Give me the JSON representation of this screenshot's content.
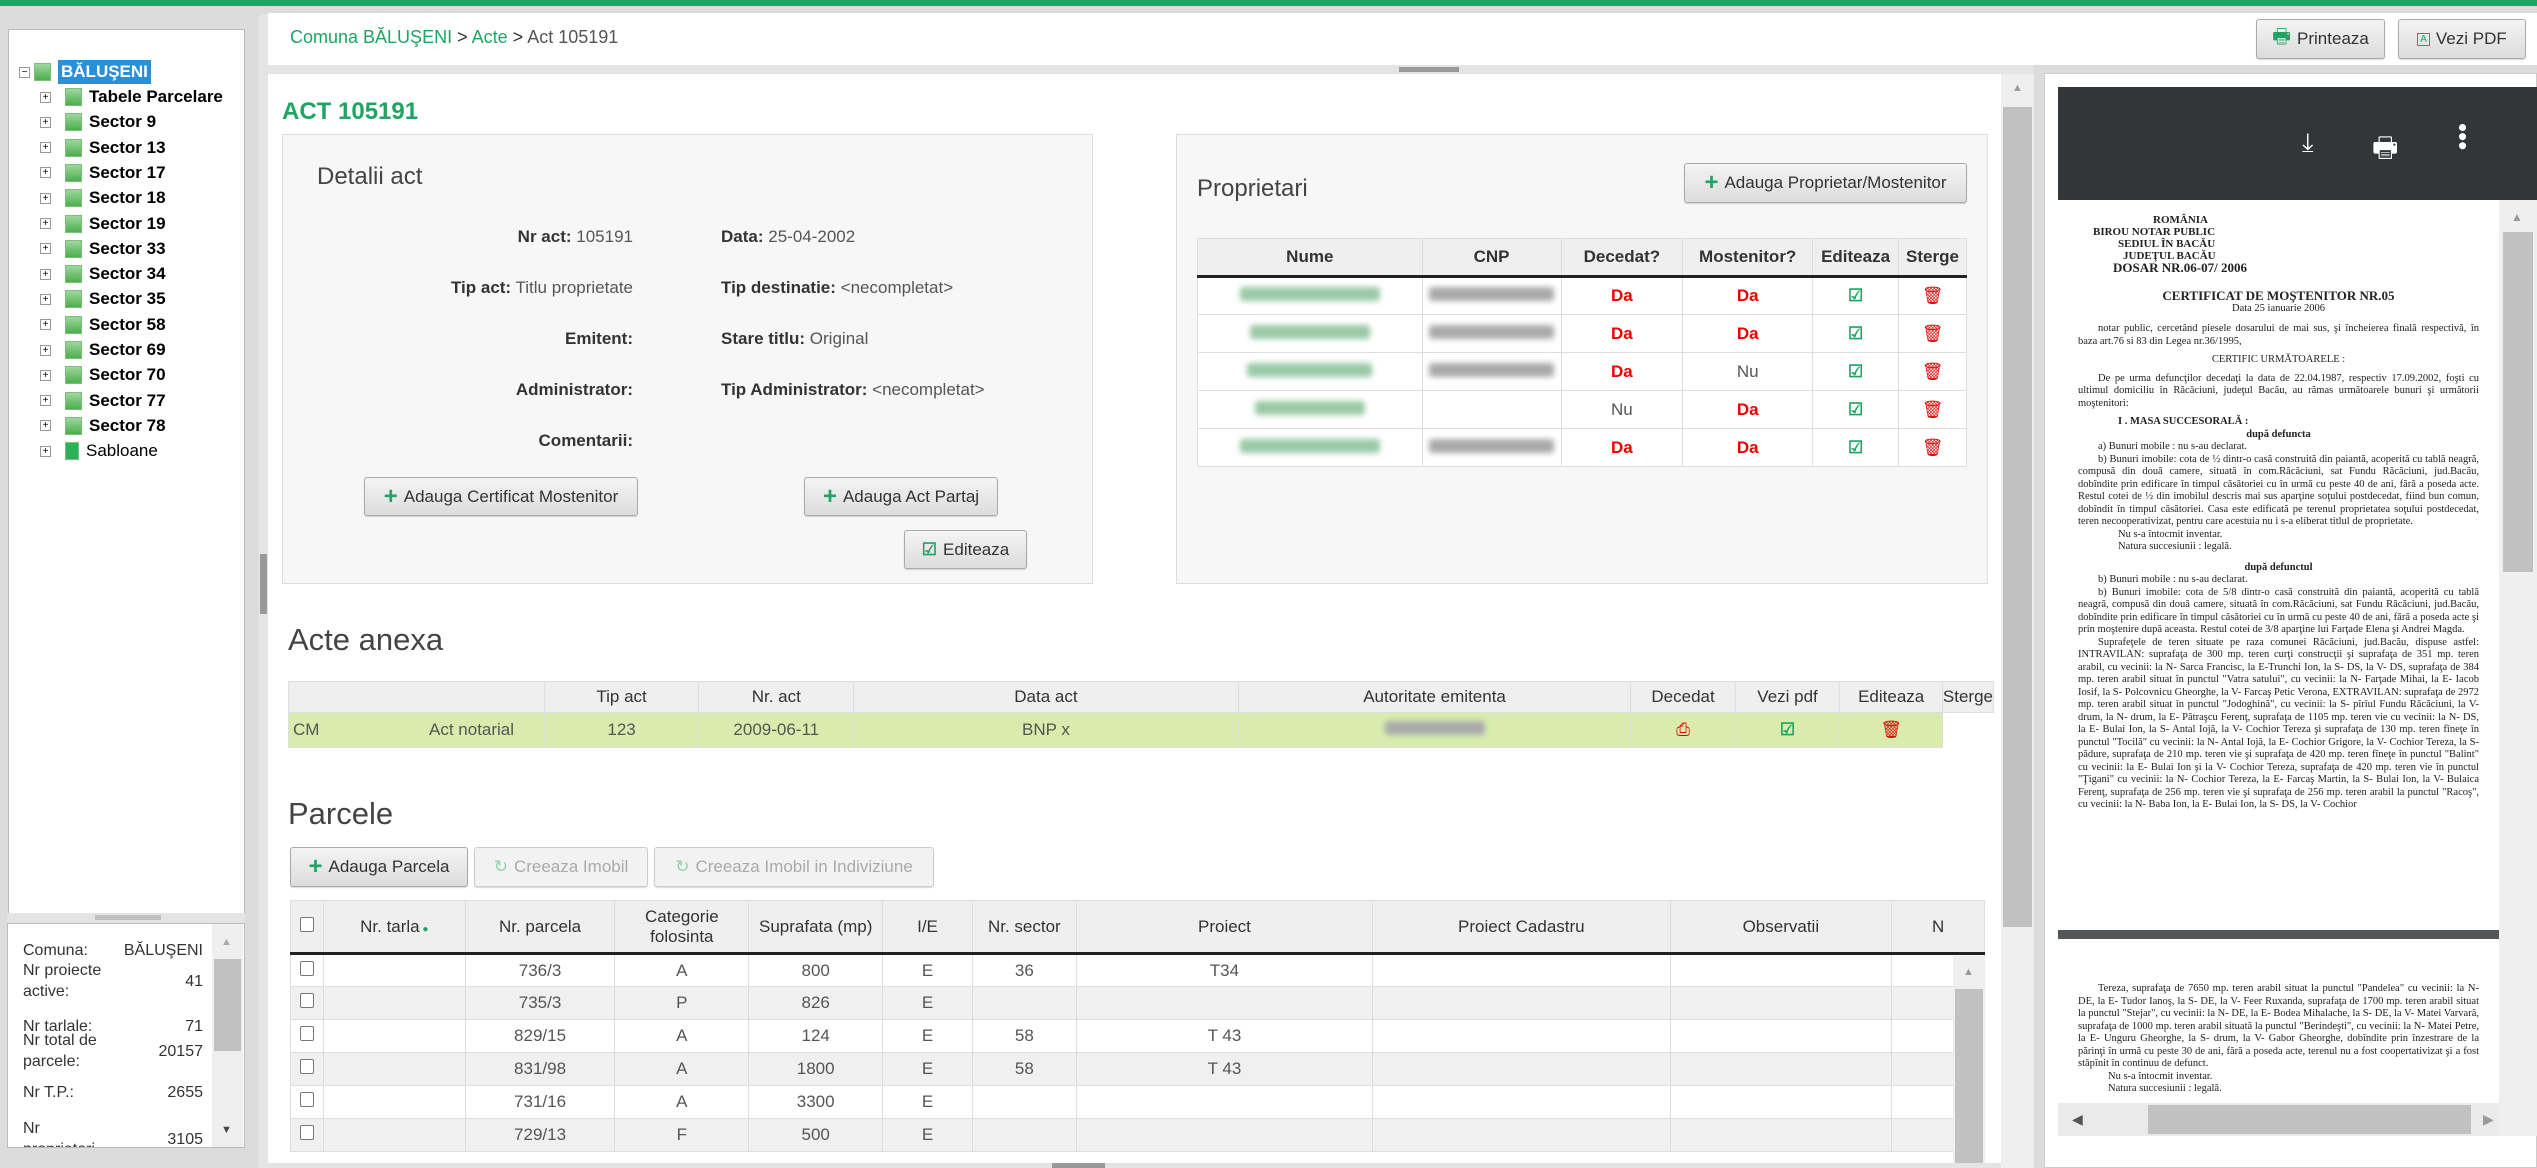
{
  "colors": {
    "brand": "#1fa463",
    "danger": "#e00000",
    "tree_selected": "#2a8fd6",
    "anexa_row": "#d9ecae"
  },
  "breadcrumb": {
    "root": "Comuna BĂLUŞENI",
    "sep": ">",
    "acte": "Acte",
    "current": "Act 105191"
  },
  "header_buttons": {
    "print": "Printeaza",
    "pdf": "Vezi PDF"
  },
  "tree": {
    "root": "BĂLUŞENI",
    "items": [
      "Tabele Parcelare",
      "Sector 9",
      "Sector 13",
      "Sector 17",
      "Sector 18",
      "Sector 19",
      "Sector 33",
      "Sector 34",
      "Sector 35",
      "Sector 58",
      "Sector 69",
      "Sector 70",
      "Sector 77",
      "Sector 78",
      "Sabloane"
    ]
  },
  "stats": [
    {
      "label": "Comuna:",
      "value": "BĂLUŞENI"
    },
    {
      "label": "Nr proiecte active:",
      "value": "41"
    },
    {
      "label": "Nr tarlale:",
      "value": "71"
    },
    {
      "label": "Nr total de parcele:",
      "value": "20157"
    },
    {
      "label": "Nr T.P.:",
      "value": "2655"
    },
    {
      "label": "Nr proprietari",
      "value": "3105"
    }
  ],
  "act": {
    "title": "ACT 105191",
    "details_title": "Detalii act",
    "fields": [
      {
        "label": "Nr act:",
        "value": "105191"
      },
      {
        "label": "Data:",
        "value": "25-04-2002"
      },
      {
        "label": "Tip act:",
        "value": "Titlu proprietate"
      },
      {
        "label": "Tip destinatie:",
        "value": "<necompletat>"
      },
      {
        "label": "Emitent:",
        "value": ""
      },
      {
        "label": "Stare titlu:",
        "value": "Original"
      },
      {
        "label": "Administrator:",
        "value": ""
      },
      {
        "label": "Tip Administrator:",
        "value": "<necompletat>"
      },
      {
        "label": "Comentarii:",
        "value": ""
      }
    ],
    "btn_cert": "Adauga Certificat Mostenitor",
    "btn_partaj": "Adauga Act Partaj",
    "btn_edit": "Editeaza"
  },
  "proprietari": {
    "title": "Proprietari",
    "add_button": "Adauga Proprietar/Mostenitor",
    "columns": [
      "Nume",
      "CNP",
      "Decedat?",
      "Mostenitor?",
      "Editeaza",
      "Sterge"
    ],
    "rows": [
      {
        "decedat": "Da",
        "mostenitor": "Da"
      },
      {
        "decedat": "Da",
        "mostenitor": "Da"
      },
      {
        "decedat": "Da",
        "mostenitor": "Nu"
      },
      {
        "decedat": "Nu",
        "mostenitor": "Da"
      },
      {
        "decedat": "Da",
        "mostenitor": "Da"
      }
    ]
  },
  "anexa": {
    "title": "Acte anexa",
    "columns": [
      "",
      "Tip act",
      "Nr. act",
      "Data act",
      "Autoritate emitenta",
      "Decedat",
      "Vezi pdf",
      "Editeaza",
      "Sterge"
    ],
    "rows": [
      {
        "tip": "CM",
        "tip_act": "Act notarial",
        "nr": "123",
        "data": "2009-06-11",
        "autoritate": "BNP x"
      }
    ]
  },
  "parcele": {
    "title": "Parcele",
    "btn_add": "Adauga Parcela",
    "btn_imobil": "Creeaza Imobil",
    "btn_indiviziune": "Creeaza Imobil in Indiviziune",
    "columns": [
      "Nr. tarla",
      "Nr. parcela",
      "Categorie folosinta",
      "Suprafata (mp)",
      "I/E",
      "Nr. sector",
      "Proiect",
      "Proiect Cadastru",
      "Observatii",
      "N"
    ],
    "rows": [
      {
        "tarla": "",
        "parcela": "736/3",
        "cat": "A",
        "supr": "800",
        "ie": "E",
        "sector": "36",
        "proiect": "T34"
      },
      {
        "tarla": "",
        "parcela": "735/3",
        "cat": "P",
        "supr": "826",
        "ie": "E",
        "sector": "",
        "proiect": ""
      },
      {
        "tarla": "",
        "parcela": "829/15",
        "cat": "A",
        "supr": "124",
        "ie": "E",
        "sector": "58",
        "proiect": "T 43"
      },
      {
        "tarla": "",
        "parcela": "831/98",
        "cat": "A",
        "supr": "1800",
        "ie": "E",
        "sector": "58",
        "proiect": "T 43"
      },
      {
        "tarla": "",
        "parcela": "731/16",
        "cat": "A",
        "supr": "3300",
        "ie": "E",
        "sector": "",
        "proiect": ""
      },
      {
        "tarla": "",
        "parcela": "729/13",
        "cat": "F",
        "supr": "500",
        "ie": "E",
        "sector": "",
        "proiect": ""
      }
    ]
  },
  "pdf": {
    "icons": [
      "download-icon",
      "print-icon",
      "more-vert-icon"
    ],
    "page1": {
      "header": [
        "ROMÂNIA",
        "BIROU NOTAR PUBLIC",
        "SEDIUL ÎN BACĂU",
        "JUDEŢUL BACĂU",
        "DOSAR NR.06-07/ 2006"
      ],
      "title": "CERTIFICAT DE MOŞTENITOR NR.05",
      "date": "Data 25 ianuarie 2006",
      "intro": "notar public, cercetând piesele dosarului de mai sus, şi încheierea finală respectivă, în baza art.76 si 83 din Legea nr.36/1995,",
      "certific": "CERTIFIC URMĂTOARELE :",
      "p1": "De pe urma defuncţilor decedaţi la data de 22.04.1987, respectiv 17.09.2002, foşti cu ultimul domiciliu în Răcăciuni, judeţul Bacău, au rămas următoarele bunuri şi următorii moştenitori:",
      "section": "I . MASA SUCCESORALĂ :",
      "sub1": "după defuncta",
      "a": "a) Bunuri mobile : nu s-au declarat.",
      "b": "b) Bunuri imobile: cota de ½ dintr-o casă construită din paiantă, acoperită cu tablă neagră, compusă din două camere, situată în com.Răcăciuni, sat Fundu Răcăciuni, jud.Bacău, dobîndite prin edificare în timpul căsătoriei cu în urmă cu peste 40 de ani, fără a poseda acte. Restul cotei de ½ din imobilul descris mai sus aparţine soţului postdecedat, fiind bun comun, dobîndit în timpul căsătoriei. Casa este edificată pe terenul proprietatea soţului postdecedat, teren necooperativizat, pentru care acestuia nu i s-a eliberat titlul de proprietate.",
      "inv": "Nu s-a întocmit inventar.",
      "nat": "Natura succesiunii : legală.",
      "sub2": "după defunctul",
      "b2a": "b) Bunuri mobile : nu s-au declarat.",
      "b2b": "b) Bunuri imobile: cota de 5/8 dintr-o casă construită din paiantă, acoperită cu tablă neagră, compusă din două camere, situată în com.Răcăciuni, sat Fundu Răcăciuni, jud.Bacău, dobîndite prin edificare în timpul căsătoriei cu în urmă cu peste 40 de ani, fără a poseda acte şi prin moştenire după aceasta. Restul cotei de 3/8 aparţine lui Farţade Elena şi Andrei Magda.",
      "supr": "Suprafeţele de teren situate pe raza comunei Răcăciuni, jud.Bacău, dispuse astfel: INTRAVILAN: suprafaţa de 300 mp. teren curţi construcţii şi suprafaţa de 351 mp. teren arabil, cu vecinii: la N- Sarca Francisc, la E-Trunchi Ion, la S- DS, la V- DS, suprafaţa de 384 mp. teren arabil situat în punctul \"Vatra satului\", cu vecinii: la N- Farţade Mihai, la E- Iacob Iosif, la S- Polcovnicu Gheorghe, la V- Farcaş Petic Verona, EXTRAVILAN: suprafaţa de 2972 mp. teren arabil situat în punctul \"Jodoghină\", cu vecinii: la S- pîrîul Fundu Răcăciuni, la V- drum, la N- drum, la E- Pătraşcu Ferenţ, suprafaţa de 1105 mp. teren vie cu vecinii: la N- DS, la E- Bulai Ion, la S- Antal Iojă, la V- Cochior Tereza şi suprafaţa de 130 mp. teren fîneţe în punctul \"Tocilă\" cu vecinii: la N- Antal Iojă, la E- Cochior Grigore, la V- Cochior Tereza, la S- pădure, suprafaţa de 210 mp. teren vie şi suprafaţa de 420 mp. teren fîneţe în punctul \"Balint\" cu vecinii: la E- Bulai Ion şi la V- Cochior Tereza, suprafaţa de 420 mp. teren vie în punctul \"Ţigani\" cu vecinii: la N- Cochior Tereza, la E- Farcaş Martin, la S- Bulai Ion, la V- Bulaica Ferenţ, suprafaţa de 256 mp. teren vie şi suprafaţa de 256 mp. teren arabil la punctul \"Racoş\", cu vecinii: la N- Baba Ion, la E- Bulai Ion, la S- DS, la V- Cochior"
    },
    "page2": {
      "p": "Tereza, suprafaţa de 7650 mp. teren arabil situat la punctul \"Pandelea\" cu vecinii: la N- DE, la E- Tudor Ianoş, la S- DE, la V- Feer Ruxanda, suprafaţa de 1700 mp. teren arabil situat la punctul \"Stejar\", cu vecinii: la N- DE, la E- Bodea Mihalache, la S- DE, la V- Matei Varvară, suprafaţa de 1000 mp. teren arabil situată la punctul \"Berindeşti\", cu vecinii: la N- Matei Petre, la E- Unguru Gheorghe, la S- drum, la V- Gabor Gheorghe, dobîndite prin înzestrare de la părinţi în urmă cu peste 30 de ani, fără a poseda acte, terenul nu a fost coopertativizat şi a fost stăpînit în continuu de defunct.",
      "inv": "Nu s-a întocmit inventar.",
      "nat": "Natura succesiunii : legală."
    }
  }
}
